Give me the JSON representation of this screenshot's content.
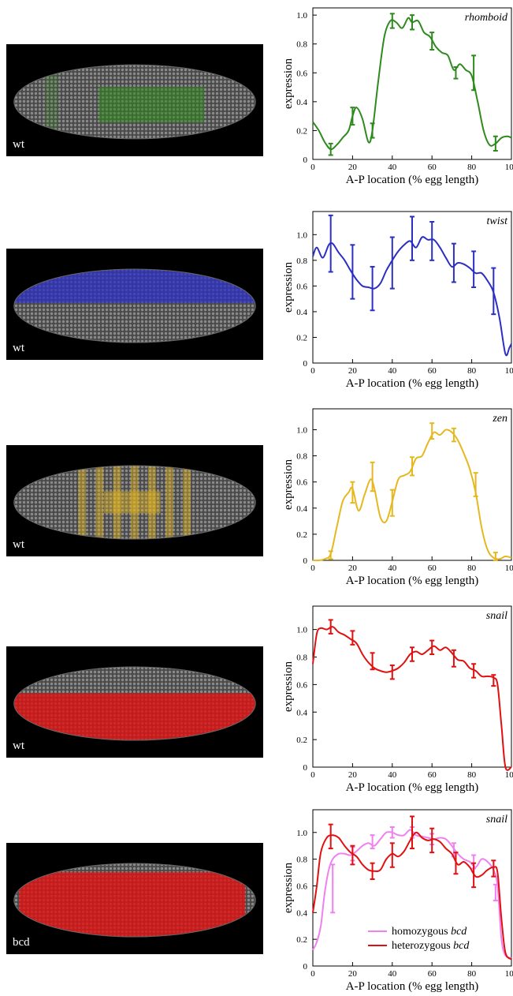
{
  "panels": [
    {
      "label": "wt",
      "color": "#2f8a1e",
      "stain": "green"
    },
    {
      "label": "wt",
      "color": "#2b2fc2",
      "stain": "blue"
    },
    {
      "label": "wt",
      "color": "#e6b820",
      "stain": "yellow"
    },
    {
      "label": "wt",
      "color": "#e01010",
      "stain": "red"
    },
    {
      "label": "bcd",
      "color": "#e01010",
      "stain": "red"
    }
  ],
  "chart_data": [
    {
      "type": "line",
      "title": "rhomboid",
      "xlabel": "A-P location (% egg length)",
      "ylabel": "expression",
      "xlim": [
        0,
        100
      ],
      "ylim": [
        0,
        1.05
      ],
      "xticks": [
        "0",
        "20",
        "40",
        "60",
        "80",
        "100"
      ],
      "yticks": [
        "0",
        "0.2",
        "0.4",
        "0.6",
        "0.8",
        "1.0"
      ],
      "series": [
        {
          "color": "#2f8a1e",
          "x": [
            0,
            3,
            6,
            9,
            12,
            15,
            18,
            20,
            22,
            25,
            28,
            30,
            33,
            36,
            39,
            42,
            45,
            48,
            50,
            53,
            56,
            59,
            62,
            65,
            68,
            71,
            74,
            77,
            80,
            83,
            86,
            89,
            92,
            95,
            98,
            100
          ],
          "y": [
            0.26,
            0.2,
            0.12,
            0.07,
            0.1,
            0.15,
            0.2,
            0.3,
            0.36,
            0.28,
            0.12,
            0.2,
            0.55,
            0.85,
            0.96,
            0.95,
            0.91,
            0.98,
            0.95,
            0.96,
            0.88,
            0.85,
            0.78,
            0.74,
            0.72,
            0.62,
            0.66,
            0.62,
            0.58,
            0.4,
            0.2,
            0.1,
            0.11,
            0.15,
            0.16,
            0.15
          ],
          "errors": [
            {
              "x": 9,
              "y": 0.07,
              "err": 0.04
            },
            {
              "x": 20,
              "y": 0.3,
              "err": 0.06
            },
            {
              "x": 30,
              "y": 0.2,
              "err": 0.05
            },
            {
              "x": 40,
              "y": 0.96,
              "err": 0.05
            },
            {
              "x": 50,
              "y": 0.95,
              "err": 0.05
            },
            {
              "x": 60,
              "y": 0.82,
              "err": 0.06
            },
            {
              "x": 72,
              "y": 0.6,
              "err": 0.04
            },
            {
              "x": 81,
              "y": 0.6,
              "err": 0.12
            },
            {
              "x": 92,
              "y": 0.11,
              "err": 0.05
            }
          ]
        }
      ]
    },
    {
      "type": "line",
      "title": "twist",
      "xlabel": "A-P location (% egg length)",
      "ylabel": "expression",
      "xlim": [
        0,
        100
      ],
      "ylim": [
        0,
        1.18
      ],
      "xticks": [
        "0",
        "20",
        "40",
        "60",
        "80",
        "100"
      ],
      "yticks": [
        "0",
        "0.2",
        "0.4",
        "0.6",
        "0.8",
        "1.0"
      ],
      "series": [
        {
          "color": "#2b2fc2",
          "x": [
            0,
            2,
            5,
            8,
            10,
            13,
            16,
            19,
            22,
            25,
            28,
            31,
            34,
            37,
            40,
            43,
            46,
            49,
            52,
            55,
            58,
            61,
            64,
            67,
            70,
            73,
            76,
            79,
            82,
            85,
            88,
            91,
            94,
            97,
            99,
            100
          ],
          "y": [
            0.83,
            0.9,
            0.82,
            0.92,
            0.93,
            0.86,
            0.8,
            0.72,
            0.65,
            0.6,
            0.59,
            0.58,
            0.62,
            0.72,
            0.8,
            0.87,
            0.92,
            0.95,
            0.9,
            0.98,
            0.96,
            0.96,
            0.9,
            0.82,
            0.75,
            0.78,
            0.77,
            0.74,
            0.7,
            0.7,
            0.64,
            0.55,
            0.35,
            0.07,
            0.12,
            0.15
          ],
          "errors": [
            {
              "x": 9,
              "y": 0.93,
              "err": 0.22
            },
            {
              "x": 20,
              "y": 0.71,
              "err": 0.21
            },
            {
              "x": 30,
              "y": 0.58,
              "err": 0.17
            },
            {
              "x": 40,
              "y": 0.78,
              "err": 0.2
            },
            {
              "x": 50,
              "y": 0.97,
              "err": 0.17
            },
            {
              "x": 60,
              "y": 0.95,
              "err": 0.15
            },
            {
              "x": 71,
              "y": 0.78,
              "err": 0.15
            },
            {
              "x": 81,
              "y": 0.73,
              "err": 0.14
            },
            {
              "x": 91,
              "y": 0.56,
              "err": 0.18
            }
          ]
        }
      ]
    },
    {
      "type": "line",
      "title": "zen",
      "xlabel": "A-P location (% egg length)",
      "ylabel": "expression",
      "xlim": [
        0,
        100
      ],
      "ylim": [
        0,
        1.16
      ],
      "xticks": [
        "0",
        "20",
        "40",
        "60",
        "80",
        "100"
      ],
      "yticks": [
        "0",
        "0.2",
        "0.4",
        "0.6",
        "0.8",
        "1.0"
      ],
      "series": [
        {
          "color": "#e6b820",
          "x": [
            0,
            3,
            6,
            9,
            12,
            15,
            18,
            20,
            23,
            26,
            29,
            31,
            34,
            37,
            40,
            43,
            46,
            49,
            52,
            55,
            58,
            61,
            64,
            67,
            70,
            73,
            76,
            79,
            82,
            85,
            88,
            91,
            94,
            97,
            100
          ],
          "y": [
            0.0,
            0.0,
            0.01,
            0.05,
            0.25,
            0.45,
            0.52,
            0.55,
            0.38,
            0.5,
            0.62,
            0.55,
            0.33,
            0.3,
            0.45,
            0.62,
            0.65,
            0.68,
            0.78,
            0.8,
            0.9,
            0.98,
            0.96,
            1.0,
            0.98,
            0.92,
            0.82,
            0.7,
            0.52,
            0.25,
            0.08,
            0.02,
            0.01,
            0.03,
            0.02
          ],
          "errors": [
            {
              "x": 9,
              "y": 0.04,
              "err": 0.03
            },
            {
              "x": 20,
              "y": 0.52,
              "err": 0.08
            },
            {
              "x": 30,
              "y": 0.64,
              "err": 0.11
            },
            {
              "x": 40,
              "y": 0.44,
              "err": 0.1
            },
            {
              "x": 50,
              "y": 0.72,
              "err": 0.07
            },
            {
              "x": 60,
              "y": 0.99,
              "err": 0.06
            },
            {
              "x": 71,
              "y": 0.96,
              "err": 0.05
            },
            {
              "x": 82,
              "y": 0.58,
              "err": 0.09
            },
            {
              "x": 92,
              "y": 0.03,
              "err": 0.03
            }
          ]
        }
      ]
    },
    {
      "type": "line",
      "title": "snail",
      "xlabel": "A-P location (% egg length)",
      "ylabel": "expression",
      "xlim": [
        0,
        100
      ],
      "ylim": [
        0,
        1.17
      ],
      "xticks": [
        "0",
        "20",
        "40",
        "60",
        "80",
        "100"
      ],
      "yticks": [
        "0",
        "0.2",
        "0.4",
        "0.6",
        "0.8",
        "1.0"
      ],
      "series": [
        {
          "color": "#e01010",
          "x": [
            0,
            2,
            4,
            7,
            10,
            13,
            16,
            19,
            22,
            25,
            28,
            31,
            34,
            37,
            40,
            43,
            46,
            49,
            52,
            55,
            58,
            61,
            64,
            67,
            70,
            73,
            76,
            79,
            82,
            85,
            88,
            91,
            93,
            95,
            97,
            100
          ],
          "y": [
            0.75,
            0.97,
            1.01,
            1.0,
            1.02,
            0.98,
            0.96,
            0.93,
            0.9,
            0.82,
            0.76,
            0.72,
            0.7,
            0.69,
            0.7,
            0.72,
            0.76,
            0.82,
            0.84,
            0.82,
            0.85,
            0.88,
            0.85,
            0.87,
            0.83,
            0.78,
            0.77,
            0.72,
            0.7,
            0.66,
            0.66,
            0.65,
            0.6,
            0.3,
            0.0,
            0.0
          ],
          "errors": [
            {
              "x": 9,
              "y": 1.02,
              "err": 0.05
            },
            {
              "x": 20,
              "y": 0.94,
              "err": 0.05
            },
            {
              "x": 30,
              "y": 0.77,
              "err": 0.06
            },
            {
              "x": 40,
              "y": 0.69,
              "err": 0.05
            },
            {
              "x": 50,
              "y": 0.82,
              "err": 0.05
            },
            {
              "x": 60,
              "y": 0.87,
              "err": 0.05
            },
            {
              "x": 71,
              "y": 0.79,
              "err": 0.06
            },
            {
              "x": 81,
              "y": 0.7,
              "err": 0.05
            },
            {
              "x": 91,
              "y": 0.63,
              "err": 0.04
            }
          ]
        }
      ]
    },
    {
      "type": "line",
      "title": "snail",
      "xlabel": "A-P location (% egg length)",
      "ylabel": "expression",
      "xlim": [
        0,
        100
      ],
      "ylim": [
        0,
        1.17
      ],
      "xticks": [
        "0",
        "20",
        "40",
        "60",
        "80",
        "100"
      ],
      "yticks": [
        "0",
        "0.2",
        "0.4",
        "0.6",
        "0.8",
        "1.0"
      ],
      "legend": {
        "position": "bottom-right",
        "entries": [
          {
            "prefix": "homozygous ",
            "italic": "bcd",
            "color": "#f080f0"
          },
          {
            "prefix": "heterozygous ",
            "italic": "bcd",
            "color": "#e01010"
          }
        ]
      },
      "series": [
        {
          "name": "homozygous bcd",
          "color": "#f080f0",
          "x": [
            0,
            2,
            4,
            6,
            8,
            10,
            13,
            16,
            19,
            22,
            25,
            28,
            31,
            34,
            37,
            40,
            43,
            46,
            49,
            52,
            55,
            58,
            61,
            64,
            67,
            70,
            73,
            76,
            79,
            82,
            85,
            88,
            91,
            93,
            95,
            97,
            100
          ],
          "y": [
            0.12,
            0.18,
            0.3,
            0.55,
            0.72,
            0.8,
            0.84,
            0.84,
            0.83,
            0.86,
            0.9,
            0.92,
            0.9,
            0.95,
            1.0,
            1.0,
            0.98,
            0.98,
            1.02,
            0.98,
            0.97,
            0.96,
            0.95,
            0.96,
            0.95,
            0.9,
            0.84,
            0.8,
            0.78,
            0.74,
            0.8,
            0.78,
            0.72,
            0.6,
            0.2,
            0.08,
            0.06
          ],
          "errors": [
            {
              "x": 10,
              "y": 0.58,
              "err": 0.18
            },
            {
              "x": 20,
              "y": 0.84,
              "err": 0.05
            },
            {
              "x": 30,
              "y": 0.93,
              "err": 0.05
            },
            {
              "x": 40,
              "y": 1.0,
              "err": 0.04
            },
            {
              "x": 50,
              "y": 1.0,
              "err": 0.04
            },
            {
              "x": 60,
              "y": 0.95,
              "err": 0.04
            },
            {
              "x": 71,
              "y": 0.87,
              "err": 0.05
            },
            {
              "x": 81,
              "y": 0.78,
              "err": 0.05
            },
            {
              "x": 92,
              "y": 0.55,
              "err": 0.06
            }
          ]
        },
        {
          "name": "heterozygous bcd",
          "color": "#e01010",
          "x": [
            0,
            2,
            4,
            7,
            10,
            13,
            16,
            19,
            22,
            25,
            28,
            31,
            34,
            37,
            40,
            43,
            46,
            49,
            52,
            55,
            58,
            61,
            64,
            67,
            70,
            73,
            76,
            79,
            82,
            85,
            88,
            91,
            93,
            95,
            97,
            100
          ],
          "y": [
            0.4,
            0.6,
            0.85,
            0.96,
            0.98,
            0.96,
            0.9,
            0.85,
            0.82,
            0.76,
            0.72,
            0.71,
            0.72,
            0.8,
            0.84,
            0.82,
            0.86,
            0.94,
            1.0,
            0.96,
            0.94,
            0.95,
            0.93,
            0.88,
            0.84,
            0.76,
            0.78,
            0.74,
            0.67,
            0.68,
            0.72,
            0.74,
            0.7,
            0.35,
            0.1,
            0.05
          ],
          "errors": [
            {
              "x": 9,
              "y": 0.97,
              "err": 0.09
            },
            {
              "x": 20,
              "y": 0.83,
              "err": 0.07
            },
            {
              "x": 30,
              "y": 0.71,
              "err": 0.06
            },
            {
              "x": 40,
              "y": 0.83,
              "err": 0.09
            },
            {
              "x": 50,
              "y": 1.0,
              "err": 0.12
            },
            {
              "x": 60,
              "y": 0.94,
              "err": 0.09
            },
            {
              "x": 72,
              "y": 0.77,
              "err": 0.08
            },
            {
              "x": 81,
              "y": 0.68,
              "err": 0.09
            },
            {
              "x": 91,
              "y": 0.73,
              "err": 0.06
            }
          ]
        }
      ]
    }
  ]
}
